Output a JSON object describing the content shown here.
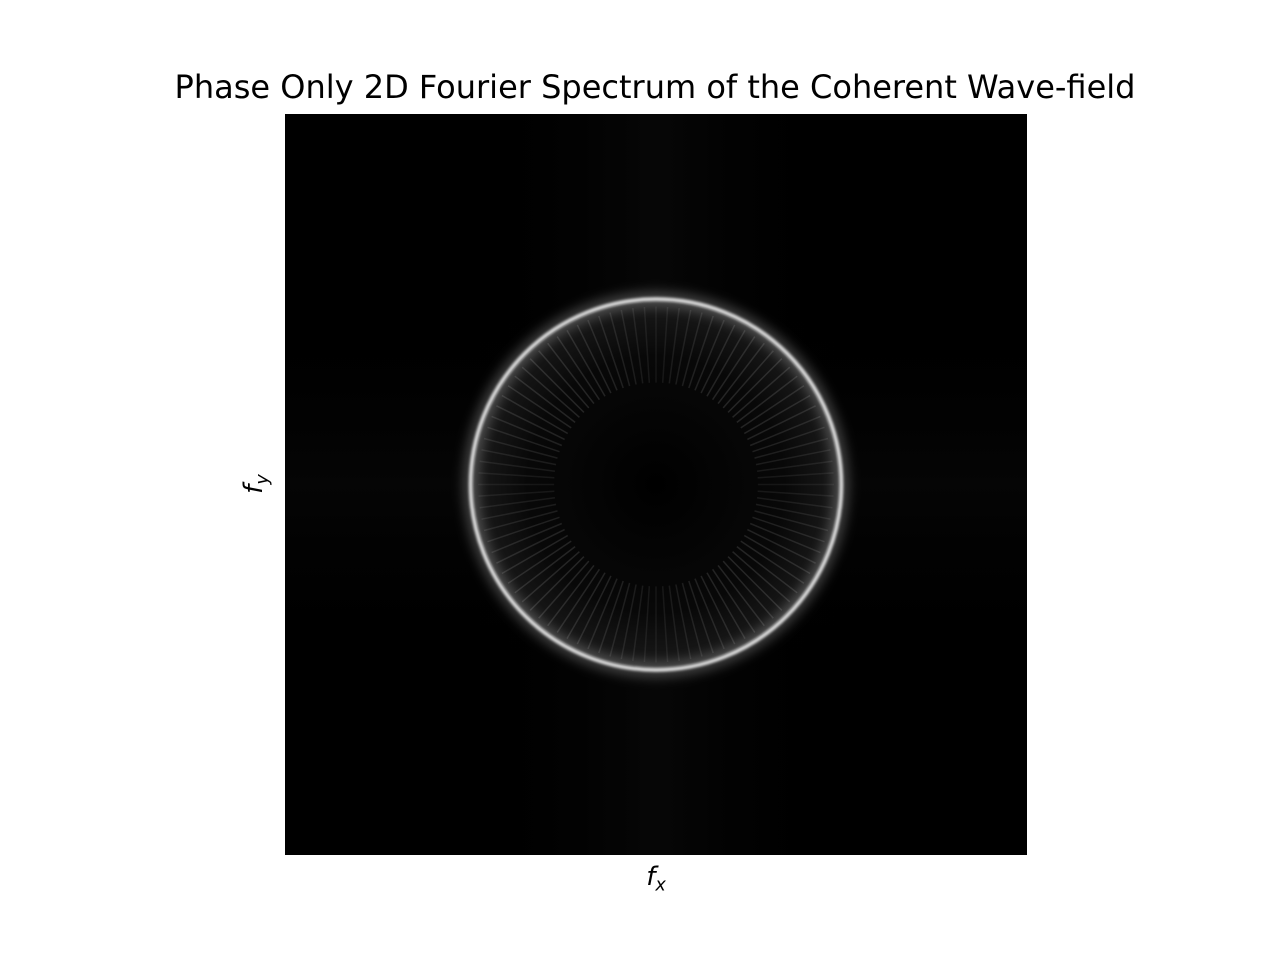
{
  "chart_data": {
    "type": "heatmap",
    "title": "Phase Only 2D Fourier Spectrum of the Coherent Wave-field",
    "xlabel_base": "f",
    "xlabel_sub": "x",
    "ylabel_base": "f",
    "ylabel_sub": "y",
    "colormap": "gray",
    "axes_ticks": "off",
    "grid": false,
    "features": [
      {
        "kind": "ring",
        "center": [
          0.0,
          0.0
        ],
        "radius": 0.505,
        "relative_intensity": 1.0
      },
      {
        "kind": "interior-fringes",
        "relative_intensity": 0.12
      },
      {
        "kind": "cross-streaks",
        "relative_intensity": 0.05
      }
    ]
  }
}
